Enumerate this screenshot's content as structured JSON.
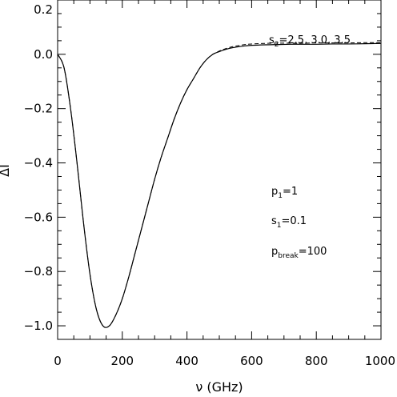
{
  "chart_data": {
    "type": "line",
    "xlabel": "ν (GHz)",
    "ylabel": "ΔI",
    "xlim": [
      0,
      1000
    ],
    "ylim": [
      -1.05,
      0.2
    ],
    "xticks": [
      0,
      200,
      400,
      600,
      800,
      1000
    ],
    "yticks": [
      0.2,
      0.0,
      -0.2,
      -0.4,
      -0.6,
      -0.8,
      -1.0
    ],
    "xtick_labels": [
      "0",
      "200",
      "400",
      "600",
      "800",
      "1000"
    ],
    "ytick_labels": [
      "0.2",
      "0.0",
      "−0.2",
      "−0.4",
      "−0.6",
      "−0.8",
      "−1.0"
    ],
    "series": [
      {
        "style": "solid",
        "x": [
          0,
          20,
          40,
          60,
          80,
          100,
          120,
          140,
          160,
          180,
          200,
          220,
          240,
          260,
          280,
          300,
          320,
          340,
          360,
          380,
          400,
          420,
          440,
          460,
          480,
          500,
          520,
          540,
          560,
          580,
          600,
          640,
          680,
          720,
          760,
          800,
          850,
          900,
          950,
          1000
        ],
        "y": [
          0.0,
          -0.05,
          -0.2,
          -0.4,
          -0.62,
          -0.81,
          -0.94,
          -1.0,
          -1.0,
          -0.96,
          -0.9,
          -0.82,
          -0.73,
          -0.64,
          -0.55,
          -0.46,
          -0.38,
          -0.31,
          -0.24,
          -0.18,
          -0.13,
          -0.09,
          -0.05,
          -0.02,
          0.0,
          0.01,
          0.018,
          0.024,
          0.028,
          0.031,
          0.033,
          0.035,
          0.036,
          0.037,
          0.037,
          0.037,
          0.038,
          0.038,
          0.039,
          0.04
        ]
      },
      {
        "style": "dashed",
        "x": [
          0,
          20,
          40,
          60,
          80,
          100,
          120,
          140,
          160,
          180,
          200,
          220,
          240,
          260,
          280,
          300,
          320,
          340,
          360,
          380,
          400,
          420,
          440,
          460,
          480,
          500,
          520,
          540,
          560,
          580,
          600,
          640,
          680,
          720,
          760,
          800,
          850,
          900,
          950,
          1000
        ],
        "y": [
          0.0,
          -0.05,
          -0.2,
          -0.4,
          -0.62,
          -0.81,
          -0.94,
          -1.0,
          -1.0,
          -0.96,
          -0.9,
          -0.82,
          -0.73,
          -0.64,
          -0.55,
          -0.46,
          -0.38,
          -0.31,
          -0.24,
          -0.18,
          -0.13,
          -0.09,
          -0.05,
          -0.02,
          0.0,
          0.012,
          0.021,
          0.028,
          0.032,
          0.036,
          0.038,
          0.04,
          0.041,
          0.041,
          0.041,
          0.042,
          0.042,
          0.042,
          0.043,
          0.043
        ]
      }
    ],
    "annotations": {
      "s2": {
        "main": "s",
        "sub": "2",
        "rest": "=2.5, 3.0, 3.5"
      },
      "p1": {
        "main": "p",
        "sub": "1",
        "rest": "=1"
      },
      "s1": {
        "main": "s",
        "sub": "1",
        "rest": "=0.1"
      },
      "pbreak": {
        "main": "p",
        "sub": "break",
        "rest": "=100"
      }
    },
    "grid": false
  }
}
